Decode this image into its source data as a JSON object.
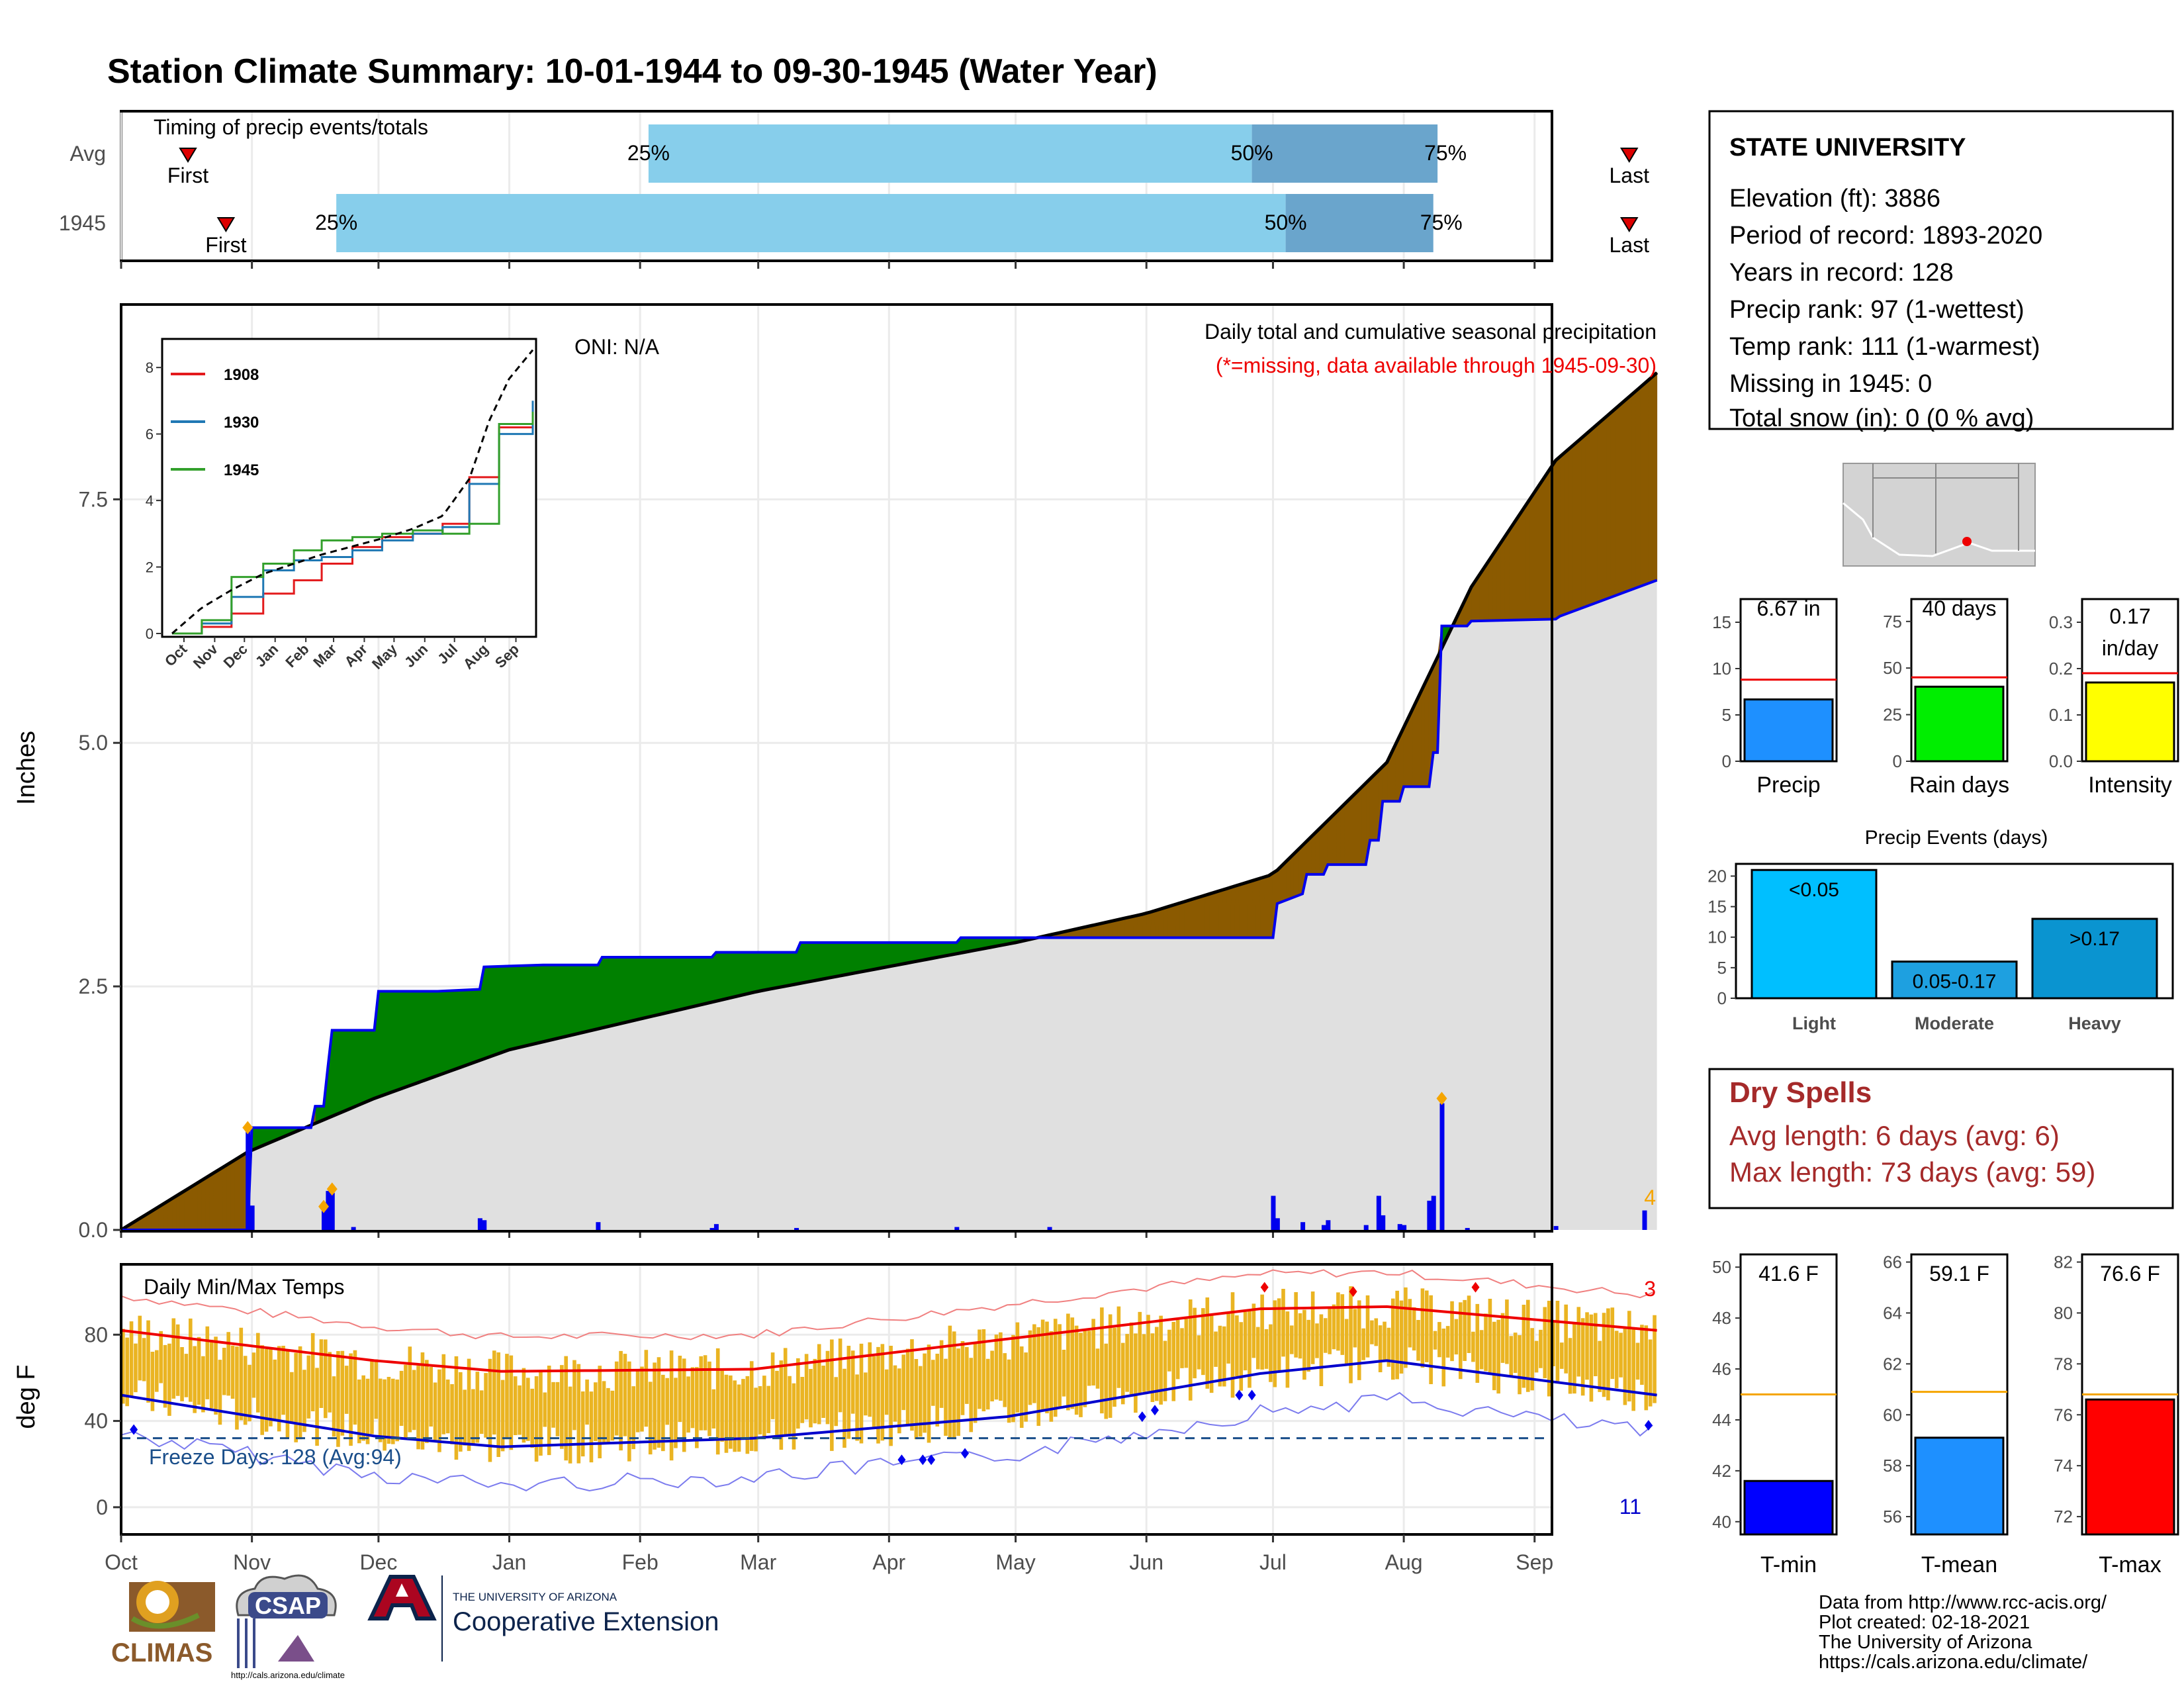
{
  "title": "Station Climate Summary: 10-01-1944 to 09-30-1945 (Water Year)",
  "months": [
    "Oct",
    "Nov",
    "Dec",
    "Jan",
    "Feb",
    "Mar",
    "Apr",
    "May",
    "Jun",
    "Jul",
    "Aug",
    "Sep"
  ],
  "colors": {
    "title": "#8b2500",
    "iqr_light": "#87ceeb",
    "iqr_dark": "#6aa5cc",
    "marker": "#dd0000",
    "surplus": "#008000",
    "deficit": "#8b5a00",
    "normal_fill": "#e0e0e0",
    "precip_line": "#0000ee",
    "tmax_line": "#ee0000",
    "tmin_line": "#0000cc",
    "temp_bar": "#eab422",
    "freeze_line": "#1a4e8a",
    "drySpells": "#a52a2a"
  },
  "timing": {
    "title": "Timing of precip events/totals",
    "rows": [
      {
        "label": "Avg",
        "first_label": "First",
        "last_label": "Last",
        "first_day": 8,
        "last_day": 359,
        "p25": 125,
        "p50": 268,
        "p75": 312,
        "p25_label": "25%",
        "p50_label": "50%",
        "p75_label": "75%"
      },
      {
        "label": "1945",
        "first_label": "First",
        "last_label": "Last",
        "first_day": 17,
        "last_day": 359,
        "p25": 51,
        "p50": 276,
        "p75": 311,
        "p25_label": "25%",
        "p50_label": "50%",
        "p75_label": "75%"
      }
    ]
  },
  "precip_panel": {
    "ylabel": "Inches",
    "yticks": [
      0.0,
      2.5,
      5.0,
      7.5
    ],
    "ytick_labels": [
      "0.0",
      "2.5",
      "5.0",
      "7.5"
    ],
    "ylim": [
      0,
      9.5
    ],
    "title_line1": "Daily total and cumulative seasonal precipitation",
    "title_line2": "(*=missing, data available through 1945-09-30)",
    "oni": "ONI: N/A",
    "extreme_count": "4"
  },
  "inset": {
    "yticks": [
      0,
      2,
      4,
      6,
      8
    ],
    "ytick_labels": [
      "0",
      "2",
      "4",
      "6",
      "8"
    ],
    "xlabels": [
      "Oct",
      "Nov",
      "Dec",
      "Jan",
      "Feb",
      "Mar",
      "Apr",
      "May",
      "Jun",
      "Jul",
      "Aug",
      "Sep"
    ],
    "legend": [
      {
        "name": "1908",
        "color": "#e31a1c"
      },
      {
        "name": "1930",
        "color": "#1f78b4"
      },
      {
        "name": "1945",
        "color": "#33a02c"
      }
    ]
  },
  "temp_panel": {
    "ylabel": "deg F",
    "title": "Daily Min/Max Temps",
    "yticks": [
      0,
      40,
      80
    ],
    "ytick_labels": [
      "0",
      "40",
      "80"
    ],
    "ylim": [
      -12,
      112
    ],
    "freeze_label": "Freeze Days: 128 (Avg:94)",
    "hot_count": "3",
    "cold_count": "11"
  },
  "station": {
    "name": "STATE UNIVERSITY",
    "lines": [
      "Elevation (ft): 3886",
      "Period of record: 1893-2020",
      "Years in record: 128",
      "Precip rank: 97 (1-wettest)",
      "Temp rank: 111 (1-warmest)",
      "Missing in 1945: 0",
      "Total snow (in): 0 (0 % avg)"
    ]
  },
  "mini_bars": [
    {
      "title": "Precip",
      "label": "6.67 in",
      "value": 6.67,
      "avg": 8.8,
      "ymax": 17.5,
      "ticks": [
        0,
        5,
        10,
        15
      ],
      "color": "#1e90ff"
    },
    {
      "title": "Rain days",
      "label": "40 days",
      "value": 40,
      "avg": 45,
      "ymax": 87,
      "ticks": [
        0,
        25,
        50,
        75
      ],
      "color": "#00ee00"
    },
    {
      "title": "Intensity",
      "label": "0.17 in/day",
      "label1": "0.17",
      "label2": "in/day",
      "value": 0.17,
      "avg": 0.19,
      "ymax": 0.35,
      "ticks": [
        0.0,
        0.1,
        0.2,
        0.3
      ],
      "tick_labels": [
        "0.0",
        "0.1",
        "0.2",
        "0.3"
      ],
      "color": "#ffff00"
    }
  ],
  "events": {
    "title": "Precip Events (days)",
    "yticks": [
      0,
      5,
      10,
      15,
      20
    ],
    "ymax": 22,
    "bars": [
      {
        "name": "Light",
        "label": "<0.05",
        "value": 21,
        "color": "#00bfff"
      },
      {
        "name": "Moderate",
        "label": "0.05-0.17",
        "value": 6,
        "color": "#1ea0e0"
      },
      {
        "name": "Heavy",
        "label": ">0.17",
        "value": 13,
        "color": "#0a94d0"
      }
    ]
  },
  "dry_spells": {
    "title": "Dry Spells",
    "line1": "Avg length: 6 days (avg: 6)",
    "line2": "Max length: 73 days (avg: 59)"
  },
  "temp_bars": [
    {
      "title": "T-min",
      "label": "41.6 F",
      "value": 41.6,
      "avg": 45.0,
      "ymin": 39.5,
      "ymax": 50.5,
      "ticks": [
        40,
        42,
        44,
        46,
        48,
        50
      ],
      "color": "#0000ff"
    },
    {
      "title": "T-mean",
      "label": "59.1 F",
      "value": 59.1,
      "avg": 60.9,
      "ymin": 55.3,
      "ymax": 66.3,
      "ticks": [
        56,
        58,
        60,
        62,
        64,
        66
      ],
      "color": "#1e90ff"
    },
    {
      "title": "T-max",
      "label": "76.6 F",
      "value": 76.6,
      "avg": 76.8,
      "ymin": 71.3,
      "ymax": 82.3,
      "ticks": [
        72,
        74,
        76,
        78,
        80,
        82
      ],
      "color": "#ff0000"
    }
  ],
  "footer": {
    "line1": "Data from http://www.rcc-acis.org/",
    "line2": "Plot created: 02-18-2021",
    "line3": "The University of Arizona",
    "line4": "https://cals.arizona.edu/climate/"
  },
  "logos": {
    "climas": "CLIMAS",
    "csap": "CSAP",
    "csap_url": "http://cals.arizona.edu/climate",
    "ua_top": "THE UNIVERSITY OF ARIZONA",
    "ua_main": "Cooperative Extension"
  },
  "chart_data": [
    {
      "type": "bar",
      "title": "Timing of precip events/totals",
      "categories": [
        "Avg",
        "1945"
      ],
      "series": [
        {
          "name": "25%",
          "values": [
            125,
            51
          ]
        },
        {
          "name": "50%",
          "values": [
            268,
            276
          ]
        },
        {
          "name": "75%",
          "values": [
            312,
            311
          ]
        }
      ]
    },
    {
      "type": "area",
      "title": "Daily total and cumulative seasonal precipitation",
      "ylabel": "Inches",
      "ylim": [
        0,
        9.5
      ],
      "x_day": [
        0,
        30,
        31,
        45,
        46,
        48,
        49,
        50,
        55,
        60,
        61,
        75,
        85,
        86,
        100,
        113,
        114,
        140,
        141,
        160,
        161,
        198,
        199,
        220,
        221,
        273,
        274,
        280,
        281,
        285,
        286,
        295,
        296,
        298,
        299,
        303,
        304,
        310,
        311,
        312,
        313,
        319,
        320,
        340,
        341,
        364
      ],
      "cumulative_1945": [
        0,
        0.0,
        1.05,
        1.05,
        1.27,
        1.27,
        1.67,
        2.05,
        2.05,
        2.05,
        2.45,
        2.45,
        2.47,
        2.7,
        2.72,
        2.72,
        2.8,
        2.8,
        2.85,
        2.85,
        2.95,
        2.95,
        3.0,
        3.0,
        3.0,
        3.0,
        3.35,
        3.45,
        3.65,
        3.65,
        3.75,
        3.75,
        4.0,
        4.0,
        4.4,
        4.4,
        4.55,
        4.55,
        4.9,
        4.9,
        6.2,
        6.2,
        6.25,
        6.27,
        6.3,
        6.67
      ],
      "normal_cumulative_end": 8.8
    },
    {
      "type": "line",
      "title": "Daily Min/Max Temps",
      "ylabel": "deg F",
      "ylim": [
        -12,
        112
      ],
      "series": [
        {
          "name": "avg max",
          "x_day": [
            0,
            60,
            90,
            150,
            210,
            270,
            300,
            364
          ],
          "values": [
            82,
            68,
            63,
            64,
            78,
            92,
            93,
            82
          ]
        },
        {
          "name": "avg min",
          "x_day": [
            0,
            60,
            90,
            150,
            210,
            270,
            300,
            364
          ],
          "values": [
            52,
            33,
            28,
            32,
            42,
            62,
            68,
            52
          ]
        }
      ]
    },
    {
      "type": "bar",
      "categories": [
        "Precip",
        "Rain days",
        "Intensity"
      ],
      "values": [
        6.67,
        40,
        0.17
      ]
    },
    {
      "type": "bar",
      "title": "Precip Events (days)",
      "categories": [
        "Light",
        "Moderate",
        "Heavy"
      ],
      "values": [
        21,
        6,
        13
      ]
    },
    {
      "type": "bar",
      "categories": [
        "T-min",
        "T-mean",
        "T-max"
      ],
      "values": [
        41.6,
        59.1,
        76.6
      ]
    }
  ]
}
